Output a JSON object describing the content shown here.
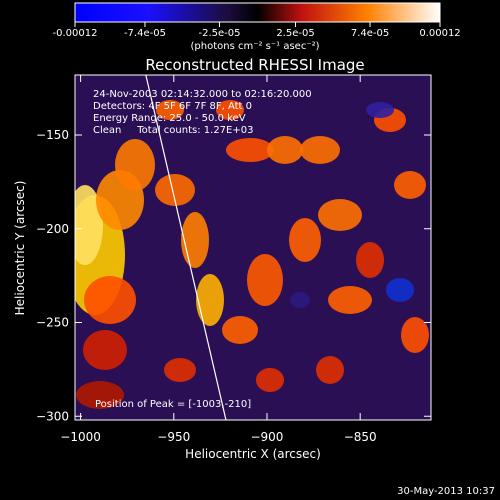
{
  "chart_data": [
    {
      "type": "colorbar",
      "tick_labels": [
        "-0.00012",
        "-7.4e-05",
        "-2.5e-05",
        "2.5e-05",
        "7.4e-05",
        "0.00012"
      ],
      "tick_values": [
        -0.00012,
        -7.4e-05,
        -2.5e-05,
        2.5e-05,
        7.4e-05,
        0.00012
      ],
      "range": [
        -0.00012,
        0.00012
      ],
      "unit_label": "(photons cm⁻² s⁻¹ asec⁻²)"
    },
    {
      "type": "heatmap",
      "title": "Reconstructed RHESSI Image",
      "xlabel": "Heliocentric X (arcsec)",
      "ylabel": "Heliocentric Y (arcsec)",
      "xlim": [
        -1003,
        -812
      ],
      "ylim": [
        -302,
        -118
      ],
      "x_ticks": [
        -1000,
        -950,
        -900,
        -850
      ],
      "x_tick_labels": [
        "−1000",
        "−950",
        "−900",
        "−850"
      ],
      "y_ticks": [
        -300,
        -250,
        -200,
        -150
      ],
      "y_tick_labels": [
        "−300",
        "−250",
        "−200",
        "−150"
      ],
      "info_lines": [
        "24-Nov-2003 02:14:32.000 to 02:16:20.000",
        "Detectors: 4F 5F 6F 7F 8F, Att 0",
        "Energy Range: 25.0 - 50.0 keV",
        "Clean     Total counts: 1.27E+03"
      ],
      "peak_label": "Position of Peak = [-1003,-210]",
      "peak_position": [
        -1003,
        -210
      ],
      "limb_line": [
        [
          -965,
          -118
        ],
        [
          -922,
          -302
        ]
      ]
    }
  ],
  "footer": {
    "date": "30-May-2013 10:37"
  },
  "colors": {
    "background": "#000000",
    "axes": "#ffffff",
    "limb": "#ffffff"
  }
}
